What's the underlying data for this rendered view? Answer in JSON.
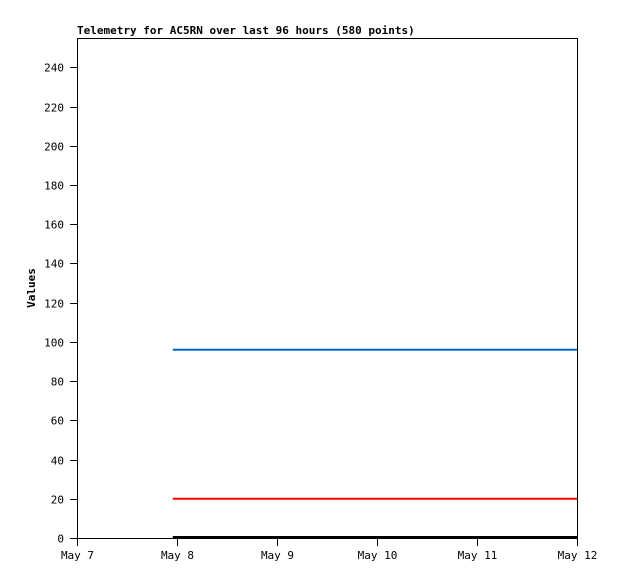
{
  "chart_data": {
    "type": "line",
    "title": "Telemetry for AC5RN over last 96 hours (580 points)",
    "xlabel": "",
    "ylabel": "Values",
    "xlim": [
      "2024-05-07T00:00",
      "2024-05-12T00:00"
    ],
    "ylim": [
      0,
      255
    ],
    "x_ticks": [
      "May 7",
      "May 8",
      "May 9",
      "May 10",
      "May 11",
      "May 12"
    ],
    "y_ticks": [
      0,
      20,
      40,
      60,
      80,
      100,
      120,
      140,
      160,
      180,
      200,
      220,
      240
    ],
    "grid": false,
    "series": [
      {
        "color": "#0066cc",
        "x": [
          "2024-05-07T23:00",
          "2024-05-12T00:00"
        ],
        "values": [
          96,
          96
        ]
      },
      {
        "color": "#ff0000",
        "x": [
          "2024-05-07T23:00",
          "2024-05-12T00:00"
        ],
        "values": [
          20,
          20
        ]
      },
      {
        "color": "#000000",
        "x": [
          "2024-05-07T23:00",
          "2024-05-12T00:00"
        ],
        "values": [
          0,
          0
        ]
      }
    ]
  }
}
